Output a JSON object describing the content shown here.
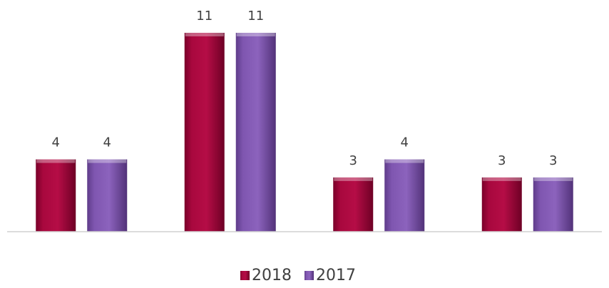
{
  "chart_data": {
    "type": "bar",
    "title": "",
    "xlabel": "",
    "ylabel": "",
    "categories": [
      "",
      "",
      "",
      ""
    ],
    "series": [
      {
        "name": "2018",
        "color": "#a8083e",
        "values": [
          4,
          11,
          3,
          3
        ]
      },
      {
        "name": "2017",
        "color": "#7f56b0",
        "values": [
          4,
          11,
          4,
          3
        ]
      }
    ],
    "ylim": [
      0,
      11
    ],
    "grid": false,
    "data_labels": true,
    "legend": {
      "position": "bottom"
    }
  }
}
